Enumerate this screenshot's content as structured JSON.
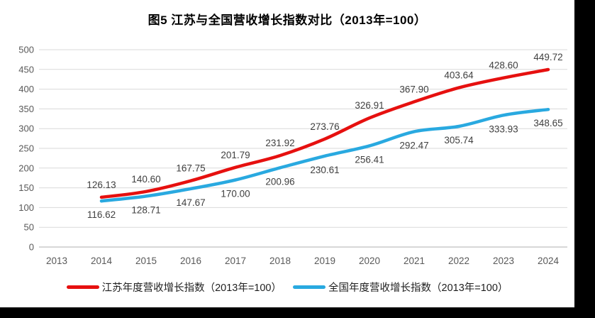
{
  "title": "图5  江苏与全国营收增长指数对比（2013年=100）",
  "colors": {
    "jiangsu_red": "#e6100f",
    "national_blue": "#29a9e0",
    "gridline": "#d9d9d9",
    "axis_line": "#bfbfbf",
    "tick_label": "#595959",
    "data_label": "#404040",
    "background": "#ffffff",
    "outer_background": "#000000"
  },
  "chart_data": {
    "type": "line",
    "title": "图5  江苏与全国营收增长指数对比（2013年=100）",
    "categories": [
      "2013",
      "2014",
      "2015",
      "2016",
      "2017",
      "2018",
      "2019",
      "2020",
      "2021",
      "2022",
      "2023",
      "2024"
    ],
    "y_ticks": [
      "0",
      "50",
      "100",
      "150",
      "200",
      "250",
      "300",
      "350",
      "400",
      "450",
      "500"
    ],
    "ylim": [
      0,
      500
    ],
    "ytick_step": 50,
    "grid": true,
    "legend_position": "bottom",
    "line_style": "smooth",
    "series": [
      {
        "name": "江苏年度营收增长指数（2013年=100）",
        "color": "#e6100f",
        "start_index": 1,
        "label_position": "above",
        "values": [
          126.13,
          140.6,
          167.75,
          201.79,
          231.92,
          273.76,
          326.91,
          367.9,
          403.64,
          428.6,
          449.72
        ],
        "labels": [
          "126.13",
          "140.60",
          "167.75",
          "201.79",
          "231.92",
          "273.76",
          "326.91",
          "367.90",
          "403.64",
          "428.60",
          "449.72"
        ]
      },
      {
        "name": "全国年度营收增长指数（2013年=100）",
        "color": "#29a9e0",
        "start_index": 1,
        "label_position": "below",
        "values": [
          116.62,
          128.71,
          147.67,
          170.0,
          200.96,
          230.61,
          256.41,
          292.47,
          305.74,
          333.93,
          348.65
        ],
        "labels": [
          "116.62",
          "128.71",
          "147.67",
          "170.00",
          "200.96",
          "230.61",
          "256.41",
          "292.47",
          "305.74",
          "333.93",
          "348.65"
        ]
      }
    ]
  }
}
